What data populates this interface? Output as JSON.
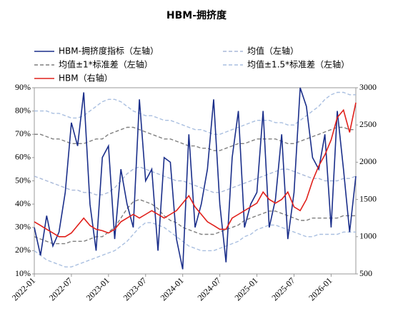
{
  "chart_data": {
    "type": "line",
    "title": "HBM-拥挤度",
    "categories": [
      "2022-01",
      null,
      null,
      null,
      null,
      null,
      "2022-07",
      null,
      null,
      null,
      null,
      null,
      "2023-01",
      null,
      null,
      null,
      null,
      null,
      "2023-07",
      null,
      null,
      null,
      null,
      null,
      "2024-01",
      null,
      null,
      null,
      null,
      null,
      "2024-07",
      null,
      null,
      null,
      null,
      null,
      "2025-01",
      null,
      null,
      null,
      null,
      null,
      "2025-07",
      null,
      null,
      null,
      null,
      null,
      "2026-01",
      null,
      null,
      null,
      null
    ],
    "ylim": [
      10,
      90
    ],
    "yticks": [
      {
        "value": 10,
        "label": "10%"
      },
      {
        "value": 20,
        "label": "20%"
      },
      {
        "value": 30,
        "label": "30%"
      },
      {
        "value": 40,
        "label": "40%"
      },
      {
        "value": 50,
        "label": "50%"
      },
      {
        "value": 60,
        "label": "60%"
      },
      {
        "value": 70,
        "label": "70%"
      },
      {
        "value": 80,
        "label": "80%"
      },
      {
        "value": 90,
        "label": "90%"
      }
    ],
    "y2lim": [
      500,
      3000
    ],
    "y2ticks": [
      500,
      1000,
      1500,
      2000,
      2500,
      3000
    ],
    "series": [
      {
        "name": "HBM-拥挤度指标（左轴）",
        "color": "#1a2e8a",
        "dash": false,
        "axis": "y",
        "values": [
          30,
          18,
          35,
          22,
          28,
          45,
          75,
          65,
          88,
          40,
          20,
          60,
          65,
          25,
          55,
          40,
          30,
          85,
          50,
          55,
          20,
          60,
          58,
          25,
          12,
          70,
          30,
          40,
          55,
          85,
          40,
          15,
          60,
          80,
          30,
          40,
          45,
          80,
          30,
          42,
          70,
          25,
          45,
          90,
          82,
          60,
          55,
          70,
          30,
          80,
          55,
          28,
          52
        ]
      },
      {
        "name": "均值（左轴）",
        "color": "#a9b9d9",
        "dash": true,
        "axis": "y",
        "values": [
          52,
          51,
          50,
          49,
          48,
          47,
          46,
          46,
          45,
          45,
          44,
          44,
          45,
          47,
          50,
          53,
          55,
          56,
          55,
          54,
          53,
          52,
          51,
          50,
          50,
          49,
          48,
          47,
          46,
          45,
          45,
          46,
          47,
          48,
          49,
          50,
          51,
          52,
          53,
          54,
          55,
          55,
          54,
          53,
          52,
          51,
          51,
          50,
          50,
          50,
          51,
          51,
          52
        ]
      },
      {
        "name": "均值±1*标准差（左轴）",
        "color": "#7f7f7f",
        "dash": true,
        "axis": "y",
        "upper": [
          70,
          70,
          69,
          68,
          68,
          67,
          66,
          66,
          66,
          67,
          68,
          68,
          70,
          71,
          72,
          73,
          73,
          72,
          71,
          70,
          69,
          68,
          68,
          67,
          66,
          65,
          65,
          64,
          64,
          63,
          63,
          64,
          65,
          66,
          66,
          67,
          68,
          68,
          68,
          68,
          67,
          66,
          66,
          67,
          68,
          69,
          70,
          71,
          72,
          73,
          73,
          72,
          72
        ],
        "lower": [
          26,
          25,
          24,
          23,
          23,
          23,
          24,
          24,
          24,
          25,
          26,
          26,
          28,
          30,
          34,
          38,
          41,
          42,
          41,
          40,
          38,
          35,
          33,
          32,
          30,
          29,
          28,
          27,
          27,
          27,
          28,
          29,
          30,
          31,
          33,
          34,
          35,
          36,
          37,
          37,
          36,
          35,
          34,
          33,
          33,
          34,
          34,
          34,
          34,
          34,
          35,
          35,
          35
        ]
      },
      {
        "name": "均值±1.5*标准差（左轴）",
        "color": "#a9bfe0",
        "dash": true,
        "axis": "y",
        "upper": [
          80,
          80,
          80,
          79,
          79,
          78,
          77,
          77,
          78,
          80,
          82,
          84,
          85,
          85,
          84,
          82,
          80,
          79,
          78,
          78,
          77,
          76,
          76,
          75,
          74,
          73,
          72,
          72,
          71,
          70,
          70,
          71,
          72,
          73,
          74,
          75,
          76,
          76,
          76,
          75,
          75,
          74,
          74,
          76,
          78,
          80,
          82,
          85,
          87,
          88,
          88,
          87,
          87
        ],
        "lower": [
          20,
          18,
          16,
          15,
          14,
          13,
          13,
          14,
          15,
          16,
          17,
          18,
          19,
          20,
          22,
          24,
          27,
          30,
          32,
          32,
          31,
          30,
          28,
          26,
          24,
          22,
          21,
          20,
          20,
          20,
          21,
          22,
          23,
          24,
          26,
          27,
          29,
          30,
          31,
          31,
          30,
          29,
          28,
          27,
          26,
          26,
          27,
          27,
          27,
          27,
          28,
          28,
          28
        ]
      },
      {
        "name": "HBM（右轴）",
        "color": "#e0201b",
        "dash": false,
        "axis": "y2",
        "values": [
          1200,
          1150,
          1100,
          1050,
          1000,
          1000,
          1050,
          1150,
          1250,
          1150,
          1100,
          1080,
          1050,
          1100,
          1200,
          1250,
          1300,
          1250,
          1300,
          1350,
          1300,
          1250,
          1300,
          1350,
          1450,
          1550,
          1400,
          1300,
          1200,
          1150,
          1100,
          1100,
          1250,
          1300,
          1350,
          1400,
          1450,
          1600,
          1500,
          1450,
          1500,
          1600,
          1400,
          1350,
          1500,
          1750,
          1950,
          2100,
          2300,
          2600,
          2700,
          2400,
          2800
        ]
      }
    ]
  }
}
